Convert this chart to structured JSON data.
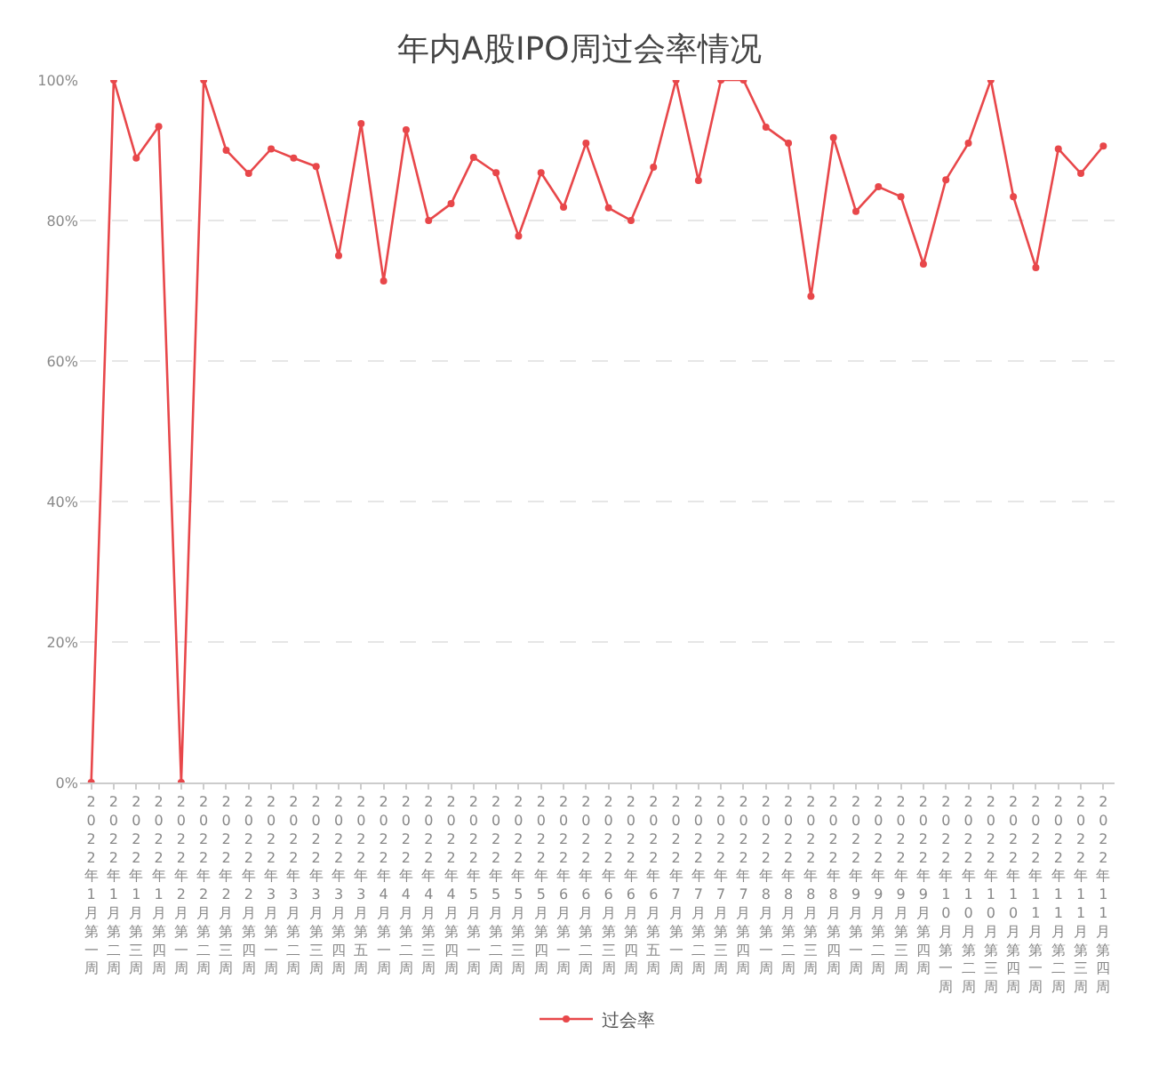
{
  "chart_data": {
    "type": "line",
    "title": "年内A股IPO周过会率情况",
    "categories": [
      "2022年1月第一周",
      "2022年1月第二周",
      "2022年1月第三周",
      "2022年1月第四周",
      "2022年2月第一周",
      "2022年2月第二周",
      "2022年2月第三周",
      "2022年2月第四周",
      "2022年3月第一周",
      "2022年3月第二周",
      "2022年3月第三周",
      "2022年3月第四周",
      "2022年3月第五周",
      "2022年4月第一周",
      "2022年4月第二周",
      "2022年4月第三周",
      "2022年4月第四周",
      "2022年5月第一周",
      "2022年5月第二周",
      "2022年5月第三周",
      "2022年5月第四周",
      "2022年6月第一周",
      "2022年6月第二周",
      "2022年6月第三周",
      "2022年6月第四周",
      "2022年6月第五周",
      "2022年7月第一周",
      "2022年7月第二周",
      "2022年7月第三周",
      "2022年7月第四周",
      "2022年8月第一周",
      "2022年8月第二周",
      "2022年8月第三周",
      "2022年8月第四周",
      "2022年9月第一周",
      "2022年9月第二周",
      "2022年9月第三周",
      "2022年9月第四周",
      "2022年10月第一周",
      "2022年10月第二周",
      "2022年10月第三周",
      "2022年10月第四周",
      "2022年11月第一周",
      "2022年11月第二周",
      "2022年11月第三周",
      "2022年11月第四周"
    ],
    "series": [
      {
        "name": "过会率",
        "color": "#e8474a",
        "values": [
          0,
          100,
          88.9,
          93.4,
          0,
          100,
          90,
          86.7,
          90.2,
          88.9,
          87.7,
          75,
          93.8,
          71.4,
          92.9,
          80,
          82.4,
          89,
          86.8,
          77.8,
          86.8,
          81.9,
          91,
          81.8,
          80,
          87.6,
          100,
          85.7,
          100,
          100,
          93.3,
          91,
          69.2,
          91.8,
          81.3,
          84.8,
          83.4,
          73.8,
          85.8,
          91,
          100,
          83.4,
          73.3,
          90.2,
          86.7,
          90.6
        ]
      }
    ],
    "ylim": [
      0,
      100
    ],
    "yticks": [
      {
        "value": 0,
        "label": "0%"
      },
      {
        "value": 20,
        "label": "20%"
      },
      {
        "value": 40,
        "label": "40%"
      },
      {
        "value": 60,
        "label": "60%"
      },
      {
        "value": 80,
        "label": "80%"
      },
      {
        "value": 100,
        "label": "100%"
      }
    ],
    "grid": "y",
    "legend": "bottom",
    "marker": "circle",
    "line_style": "solid"
  }
}
